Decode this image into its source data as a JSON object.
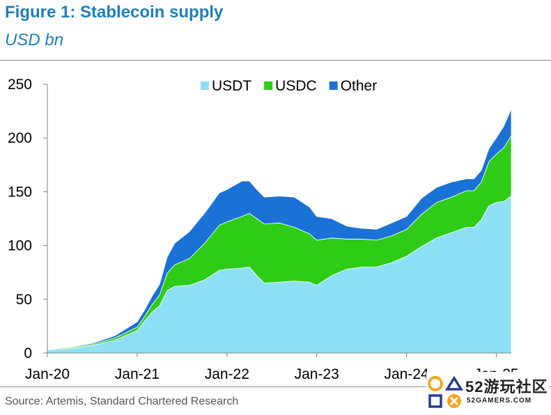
{
  "header": {
    "title": "Figure 1: Stablecoin supply",
    "subtitle": "USD bn"
  },
  "footer": {
    "source": "Source: Artemis, Standard Chartered Research"
  },
  "watermark": {
    "brand": "52游玩社区",
    "domain": "52GAMERS.COM"
  },
  "colors": {
    "usdt": "#8ee0f7",
    "usdc": "#2ecc17",
    "other": "#1a72d6",
    "title": "#1f7fb8"
  },
  "chart_data": {
    "type": "area",
    "stacked": true,
    "legend_position": "top-center",
    "grid": false,
    "ylim": [
      0,
      250
    ],
    "yticks": [
      0,
      50,
      100,
      150,
      200,
      250
    ],
    "xlim": [
      "2020-01",
      "2025-03"
    ],
    "xticks": [
      "Jan-20",
      "Jan-21",
      "Jan-22",
      "Jan-23",
      "Jan-24",
      "Jan-25"
    ],
    "xtick_dates": [
      "2020-01",
      "2021-01",
      "2022-01",
      "2023-01",
      "2024-01",
      "2025-01"
    ],
    "x": [
      "2020-01",
      "2020-04",
      "2020-07",
      "2020-10",
      "2021-01",
      "2021-02",
      "2021-03",
      "2021-04",
      "2021-05",
      "2021-06",
      "2021-08",
      "2021-10",
      "2021-12",
      "2022-01",
      "2022-03",
      "2022-04",
      "2022-05",
      "2022-06",
      "2022-08",
      "2022-10",
      "2022-12",
      "2023-01",
      "2023-03",
      "2023-05",
      "2023-07",
      "2023-09",
      "2023-11",
      "2024-01",
      "2024-03",
      "2024-05",
      "2024-07",
      "2024-09",
      "2024-10",
      "2024-11",
      "2024-12",
      "2025-01",
      "2025-02",
      "2025-03"
    ],
    "series": [
      {
        "name": "USDT",
        "values": [
          3,
          4,
          7,
          12,
          21,
          30,
          38,
          44,
          58,
          62,
          63,
          68,
          77,
          78,
          79,
          80,
          72,
          65,
          66,
          67,
          66,
          63,
          72,
          78,
          80,
          80,
          84,
          90,
          99,
          107,
          112,
          117,
          117,
          124,
          137,
          140,
          141,
          146
        ]
      },
      {
        "name": "USDC",
        "values": [
          0.5,
          1,
          1,
          2,
          3,
          4,
          7,
          10,
          16,
          20,
          25,
          34,
          42,
          44,
          48,
          50,
          53,
          55,
          55,
          50,
          45,
          42,
          35,
          28,
          26,
          25,
          25,
          25,
          30,
          33,
          33,
          34,
          34,
          35,
          41,
          45,
          50,
          56
        ]
      },
      {
        "name": "Other",
        "values": [
          0.3,
          0.5,
          1,
          2,
          5,
          6,
          8,
          10,
          15,
          20,
          25,
          28,
          30,
          30,
          33,
          30,
          27,
          25,
          25,
          28,
          25,
          22,
          18,
          12,
          10,
          10,
          12,
          12,
          15,
          14,
          14,
          11,
          11,
          11,
          12,
          15,
          20,
          25
        ]
      }
    ]
  }
}
